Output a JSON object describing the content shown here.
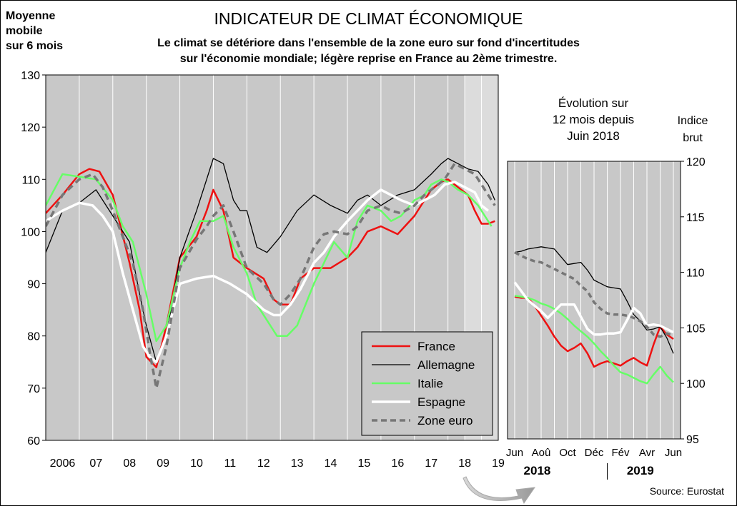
{
  "title": "INDICATEUR DE CLIMAT ÉCONOMIQUE",
  "subtitle_line1": "Le climat se détériore dans l'ensemble de la zone euro sur fond d'incertitudes",
  "subtitle_line2": "sur l'économie mondiale; légère reprise en France au 2ème trimestre.",
  "ylabel_left": [
    "Moyenne",
    "mobile",
    "sur 6 mois"
  ],
  "inset_title": [
    "Évolution sur",
    "12 mois depuis",
    "Juin 2018"
  ],
  "ylabel_right": [
    "Indice",
    "brut"
  ],
  "source": "Source: Eurostat",
  "colors": {
    "France": "#ee1111",
    "Allemagne": "#000000",
    "Italie": "#66ff66",
    "Espagne": "#ffffff",
    "Zone euro": "#777777",
    "plot_bg": "#c8c8c8",
    "highlight_bg": "#dcdcdc"
  },
  "chart_data": [
    {
      "type": "line",
      "ylim": [
        60,
        130
      ],
      "yticks": [
        60,
        70,
        80,
        90,
        100,
        110,
        120,
        130
      ],
      "xlim": [
        2006.0,
        2019.5
      ],
      "xtick_labels": [
        "2006",
        "07",
        "08",
        "09",
        "10",
        "11",
        "12",
        "13",
        "14",
        "15",
        "16",
        "17",
        "18",
        "19"
      ],
      "grid": true,
      "legend_position": "bottom-right",
      "highlight_period": [
        2018.5,
        2019.5
      ],
      "series": [
        {
          "name": "France",
          "x": [
            2006.0,
            2006.5,
            2007.0,
            2007.3,
            2007.6,
            2008.0,
            2008.5,
            2008.8,
            2009.0,
            2009.3,
            2009.6,
            2010.0,
            2010.5,
            2010.8,
            2011.0,
            2011.3,
            2011.6,
            2012.0,
            2012.5,
            2012.8,
            2013.0,
            2013.3,
            2013.6,
            2014.0,
            2014.5,
            2015.0,
            2015.3,
            2015.6,
            2016.0,
            2016.5,
            2017.0,
            2017.3,
            2017.5,
            2017.8,
            2018.0,
            2018.3,
            2018.6,
            2018.8,
            2019.0,
            2019.2,
            2019.4
          ],
          "y": [
            103.5,
            107,
            111,
            112,
            111.5,
            107,
            94,
            85,
            76,
            74,
            82,
            95,
            99,
            104,
            108,
            104,
            95,
            93,
            91,
            87,
            86,
            86,
            91,
            93,
            93,
            95,
            97,
            100,
            101,
            99.5,
            103,
            106,
            108,
            109.5,
            110,
            108.5,
            107,
            104,
            101.5,
            101.5,
            102
          ]
        },
        {
          "name": "Allemagne",
          "x": [
            2006.0,
            2006.5,
            2007.0,
            2007.5,
            2008.0,
            2008.5,
            2008.8,
            2009.0,
            2009.3,
            2009.6,
            2010.0,
            2010.5,
            2010.8,
            2011.0,
            2011.3,
            2011.6,
            2011.8,
            2012.0,
            2012.3,
            2012.6,
            2013.0,
            2013.5,
            2014.0,
            2014.5,
            2015.0,
            2015.3,
            2015.6,
            2016.0,
            2016.5,
            2017.0,
            2017.5,
            2017.8,
            2018.0,
            2018.3,
            2018.6,
            2018.9,
            2019.2,
            2019.4
          ],
          "y": [
            96,
            104,
            105.5,
            108,
            103,
            98,
            88,
            82,
            75,
            80,
            95,
            104,
            110,
            114,
            113,
            106,
            104,
            104,
            97,
            96,
            99,
            104,
            107,
            105,
            103.5,
            106,
            107,
            105,
            107,
            108,
            111,
            113,
            114,
            113,
            112,
            111.5,
            109,
            106
          ]
        },
        {
          "name": "Italie",
          "x": [
            2006.0,
            2006.5,
            2007.0,
            2007.5,
            2008.0,
            2008.3,
            2008.6,
            2008.8,
            2009.0,
            2009.3,
            2009.6,
            2010.0,
            2010.3,
            2010.6,
            2011.0,
            2011.3,
            2011.6,
            2012.0,
            2012.3,
            2012.6,
            2012.9,
            2013.2,
            2013.5,
            2014.0,
            2014.3,
            2014.6,
            2015.0,
            2015.3,
            2015.6,
            2016.0,
            2016.3,
            2016.6,
            2017.0,
            2017.3,
            2017.5,
            2017.8,
            2018.0,
            2018.3,
            2018.6,
            2018.9,
            2019.1,
            2019.3
          ],
          "y": [
            105,
            111,
            110.5,
            110,
            106,
            101,
            98,
            93,
            88,
            79,
            82,
            93,
            98,
            102,
            102,
            103,
            97,
            92,
            86,
            83,
            80,
            80,
            82,
            90,
            94,
            98,
            95,
            102,
            105,
            104,
            102,
            103,
            106,
            107,
            109,
            110,
            109.5,
            108,
            107,
            105,
            103,
            101
          ]
        },
        {
          "name": "Espagne",
          "x": [
            2006.0,
            2006.5,
            2007.0,
            2007.4,
            2007.7,
            2008.0,
            2008.3,
            2008.6,
            2008.9,
            2009.1,
            2009.3,
            2009.6,
            2010.0,
            2010.5,
            2011.0,
            2011.5,
            2012.0,
            2012.5,
            2012.8,
            2013.0,
            2013.3,
            2013.6,
            2014.0,
            2014.3,
            2014.6,
            2015.0,
            2015.3,
            2015.6,
            2016.0,
            2016.3,
            2016.6,
            2017.0,
            2017.3,
            2017.6,
            2017.9,
            2018.2,
            2018.5,
            2018.8,
            2019.0,
            2019.2
          ],
          "y": [
            102,
            104,
            105.5,
            105,
            103,
            100,
            92,
            85,
            78,
            76,
            75,
            80,
            90,
            91,
            91.5,
            90,
            88,
            85,
            84,
            84,
            86,
            89,
            94,
            96,
            99,
            102,
            104,
            106,
            108,
            107,
            106,
            105,
            106,
            107,
            109,
            109.5,
            108.5,
            107.5,
            105,
            104
          ]
        },
        {
          "name": "Zone euro",
          "x": [
            2006.0,
            2006.5,
            2007.0,
            2007.4,
            2007.7,
            2008.0,
            2008.3,
            2008.6,
            2008.9,
            2009.1,
            2009.3,
            2009.6,
            2010.0,
            2010.5,
            2010.8,
            2011.0,
            2011.3,
            2011.6,
            2012.0,
            2012.5,
            2012.8,
            2013.0,
            2013.3,
            2013.6,
            2014.0,
            2014.3,
            2014.6,
            2015.0,
            2015.3,
            2015.6,
            2016.0,
            2016.3,
            2016.6,
            2017.0,
            2017.3,
            2017.6,
            2017.9,
            2018.2,
            2018.5,
            2018.8,
            2019.0,
            2019.2,
            2019.4
          ],
          "y": [
            101,
            107,
            110,
            111,
            108.5,
            104,
            99,
            94,
            85,
            77,
            70,
            78,
            93,
            98.5,
            101,
            103,
            105,
            100,
            93,
            90,
            87,
            86,
            88,
            91,
            97,
            99.5,
            100,
            99.5,
            101,
            104,
            105,
            104,
            103.5,
            105,
            107,
            108.5,
            110,
            113,
            112,
            111,
            109,
            107,
            105
          ]
        }
      ]
    },
    {
      "type": "line",
      "ylim": [
        95,
        120
      ],
      "yticks": [
        95,
        100,
        105,
        110,
        115,
        120
      ],
      "xtick_labels": [
        "Jun",
        "Aoû",
        "Oct",
        "Déc",
        "Fév",
        "Avr",
        "Jun"
      ],
      "year_labels": [
        "2018",
        "2019"
      ],
      "grid": true,
      "x": [
        0,
        0.5,
        1,
        1.5,
        2,
        2.5,
        3,
        3.5,
        4,
        4.5,
        5,
        5.5,
        6,
        6.5,
        7,
        7.5,
        8,
        8.5,
        9,
        9.5,
        10,
        10.5,
        11,
        11.5,
        12
      ],
      "series": [
        {
          "name": "France",
          "y": [
            107.8,
            107.7,
            107.7,
            107,
            106.1,
            105.2,
            104.2,
            103.4,
            102.9,
            103.2,
            103.6,
            102.7,
            101.5,
            101.8,
            102,
            101.8,
            101.6,
            102,
            102.3,
            101.9,
            101.6,
            103.5,
            105.1,
            104.4,
            104
          ]
        },
        {
          "name": "Allemagne",
          "y": [
            111.8,
            111.9,
            112.1,
            112.2,
            112.3,
            112.2,
            112.1,
            111.4,
            110.7,
            110.8,
            110.9,
            110.2,
            109.3,
            109,
            108.7,
            108.6,
            108.5,
            107.4,
            106.2,
            105.6,
            104.8,
            104.9,
            105.1,
            104.1,
            102.7
          ]
        },
        {
          "name": "Italie",
          "y": [
            107.9,
            107.8,
            107.7,
            107.5,
            107.2,
            107,
            106.7,
            106.3,
            105.8,
            105.2,
            104.7,
            104.2,
            103.6,
            102.9,
            102.3,
            101.6,
            101,
            100.8,
            100.5,
            100.2,
            100,
            100.8,
            101.5,
            100.7,
            100.1
          ]
        },
        {
          "name": "Espagne",
          "y": [
            109.1,
            108.3,
            107.5,
            107,
            106.5,
            105.9,
            106.5,
            107.1,
            107.1,
            107.1,
            106,
            104.9,
            104.4,
            104.4,
            104.5,
            104.5,
            104.6,
            105.7,
            106.8,
            106.3,
            105.2,
            105.3,
            105.2,
            104.9,
            104.6
          ]
        },
        {
          "name": "Zone euro",
          "y": [
            111.8,
            111.5,
            111.2,
            111,
            110.9,
            110.6,
            110.3,
            110,
            109.7,
            109.4,
            108.8,
            108.3,
            107.3,
            106.7,
            106.3,
            106.2,
            106.2,
            106.1,
            105.9,
            105.6,
            105.1,
            104.4,
            104.2,
            104.5,
            104.3
          ]
        }
      ]
    }
  ]
}
